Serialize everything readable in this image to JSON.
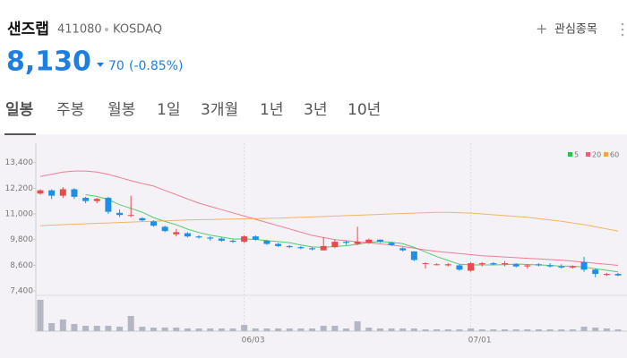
{
  "header": {
    "name": "샌즈랩",
    "code": "411080",
    "market": "KOSDAQ",
    "watchlist": "관심종목",
    "price": "8,130",
    "change": "70",
    "change_pct": "(-0.85%)"
  },
  "tabs": [
    "일봉",
    "주봉",
    "월봉",
    "1일",
    "3개월",
    "1년",
    "3년",
    "10년"
  ],
  "selected_tab": 0,
  "chart_data": {
    "type": "candlestick",
    "categories": [
      null,
      null,
      null,
      null,
      null,
      null,
      null,
      null,
      null,
      null,
      null,
      null,
      null,
      null,
      null,
      null,
      null,
      null,
      "06/03",
      null,
      null,
      null,
      null,
      null,
      null,
      null,
      null,
      null,
      null,
      null,
      null,
      null,
      null,
      null,
      null,
      null,
      null,
      null,
      "07/01",
      null,
      null,
      null,
      null,
      null,
      null,
      null,
      null,
      null,
      null,
      null,
      null,
      null
    ],
    "open": [
      11950,
      12100,
      11850,
      12150,
      11750,
      11600,
      11750,
      11050,
      10950,
      10800,
      10650,
      10400,
      10050,
      10100,
      9950,
      9900,
      9850,
      9750,
      9700,
      9950,
      9750,
      9600,
      9500,
      9450,
      9400,
      9300,
      9450,
      9700,
      9600,
      9650,
      9800,
      9650,
      9400,
      9250,
      8700,
      8650,
      8600,
      8600,
      8350,
      8650,
      8700,
      8650,
      8650,
      8550,
      8650,
      8600,
      8550,
      8500,
      8750,
      8400,
      8150,
      8200
    ],
    "high": [
      12150,
      12150,
      12250,
      12200,
      11800,
      11750,
      11800,
      11200,
      11850,
      10850,
      10700,
      10450,
      10300,
      10150,
      10000,
      9950,
      9900,
      9800,
      10000,
      10000,
      9800,
      9650,
      9550,
      9500,
      9450,
      9900,
      9800,
      9750,
      10400,
      9850,
      9800,
      9700,
      9450,
      9250,
      8750,
      8700,
      8700,
      8650,
      8750,
      8750,
      8750,
      8800,
      8700,
      8650,
      8700,
      8700,
      8650,
      8600,
      9000,
      8450,
      8250,
      8250
    ],
    "low": [
      11900,
      11700,
      11750,
      11700,
      11500,
      11500,
      11000,
      10850,
      10850,
      10650,
      10400,
      10150,
      9950,
      9900,
      9850,
      9750,
      9700,
      9650,
      9650,
      9750,
      9550,
      9450,
      9400,
      9350,
      9300,
      9300,
      9400,
      9550,
      9550,
      9600,
      9650,
      9500,
      9250,
      8800,
      8450,
      8600,
      8550,
      8350,
      8300,
      8550,
      8600,
      8550,
      8500,
      8450,
      8550,
      8500,
      8450,
      8450,
      8300,
      8050,
      8100,
      8100
    ],
    "close": [
      12100,
      11850,
      12150,
      11800,
      11600,
      11700,
      11100,
      10950,
      10950,
      10700,
      10450,
      10200,
      10150,
      9950,
      9900,
      9850,
      9750,
      9700,
      9950,
      9800,
      9600,
      9500,
      9450,
      9400,
      9350,
      9500,
      9700,
      9650,
      9700,
      9800,
      9700,
      9550,
      9300,
      8850,
      8700,
      8650,
      8650,
      8400,
      8700,
      8700,
      8650,
      8700,
      8550,
      8600,
      8600,
      8550,
      8500,
      8550,
      8400,
      8200,
      8200,
      8130
    ],
    "up_color": "#e84b4b",
    "down_color": "#1e8fe6",
    "volume": [
      350000,
      90000,
      130000,
      80000,
      60000,
      60000,
      60000,
      50000,
      170000,
      50000,
      40000,
      40000,
      40000,
      30000,
      30000,
      30000,
      30000,
      30000,
      70000,
      30000,
      30000,
      30000,
      30000,
      30000,
      30000,
      60000,
      60000,
      30000,
      110000,
      40000,
      30000,
      30000,
      30000,
      30000,
      20000,
      20000,
      20000,
      20000,
      30000,
      20000,
      20000,
      20000,
      20000,
      20000,
      20000,
      20000,
      20000,
      20000,
      50000,
      40000,
      30000,
      20000
    ],
    "volume_color": "#b4b6c4",
    "volume_ylim": [
      0,
      400000
    ],
    "series": [
      {
        "name": "5",
        "color": "#2bc24a",
        "values": [
          null,
          null,
          null,
          null,
          11900,
          11820,
          11670,
          11430,
          11260,
          11080,
          10830,
          10650,
          10490,
          10290,
          10130,
          10010,
          9920,
          9830,
          9830,
          9810,
          9750,
          9710,
          9660,
          9550,
          9460,
          9440,
          9480,
          9520,
          9580,
          9670,
          9710,
          9680,
          9610,
          9440,
          9220,
          9010,
          8830,
          8650,
          8620,
          8620,
          8620,
          8630,
          8660,
          8640,
          8620,
          8600,
          8560,
          8560,
          8520,
          8440,
          8370,
          8300
        ]
      },
      {
        "name": "20",
        "color": "#e8627a",
        "values": [
          12750,
          12850,
          12950,
          13000,
          13000,
          12950,
          12850,
          12700,
          12550,
          12420,
          12300,
          12100,
          11900,
          11700,
          11500,
          11350,
          11200,
          11050,
          10900,
          10750,
          10600,
          10450,
          10300,
          10150,
          10000,
          9900,
          9800,
          9750,
          9700,
          9650,
          9600,
          9550,
          9480,
          9400,
          9320,
          9250,
          9200,
          9150,
          9100,
          9050,
          9020,
          8990,
          8960,
          8930,
          8900,
          8870,
          8840,
          8800,
          8750,
          8700,
          8650,
          8600
        ]
      },
      {
        "name": "60",
        "color": "#f0a640",
        "values": [
          10450,
          10480,
          10500,
          10520,
          10540,
          10560,
          10580,
          10600,
          10620,
          10640,
          10660,
          10680,
          10700,
          10720,
          10730,
          10740,
          10750,
          10760,
          10770,
          10780,
          10790,
          10800,
          10820,
          10840,
          10860,
          10880,
          10900,
          10920,
          10940,
          10960,
          10980,
          11000,
          11020,
          11040,
          11060,
          11070,
          11070,
          11060,
          11040,
          11000,
          10960,
          10920,
          10880,
          10840,
          10780,
          10720,
          10660,
          10580,
          10500,
          10400,
          10300,
          10200
        ]
      }
    ],
    "ylim": [
      7200,
      14300
    ],
    "yticks": [
      {
        "value": 7400,
        "label": "7,400"
      },
      {
        "value": 8600,
        "label": "8,600"
      },
      {
        "value": 9800,
        "label": "9,800"
      },
      {
        "value": 11000,
        "label": "11,000"
      },
      {
        "value": 12200,
        "label": "12,200"
      },
      {
        "value": 13400,
        "label": "13,400"
      }
    ]
  }
}
